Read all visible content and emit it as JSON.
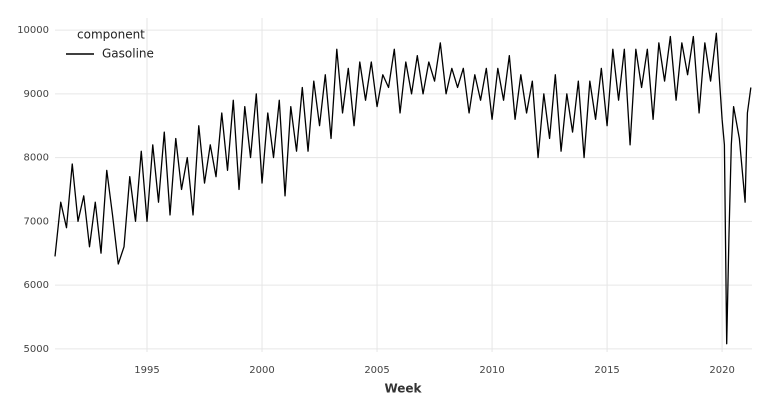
{
  "chart_data": {
    "type": "line",
    "x_label": "Week",
    "legend_title": "component",
    "legend_position": "upper left",
    "grid": true,
    "xlim": [
      1991.0,
      2021.3
    ],
    "xticks": [
      1995,
      2000,
      2005,
      2010,
      2015,
      2020
    ],
    "ylim": [
      4950,
      10190
    ],
    "yticks": [
      5000,
      6000,
      7000,
      8000,
      9000,
      10000
    ],
    "x": [
      1991.0,
      1991.25,
      1991.5,
      1991.75,
      1992.0,
      1992.25,
      1992.5,
      1992.75,
      1993.0,
      1993.25,
      1993.5,
      1993.75,
      1994.0,
      1994.25,
      1994.5,
      1994.75,
      1995.0,
      1995.25,
      1995.5,
      1995.75,
      1996.0,
      1996.25,
      1996.5,
      1996.75,
      1997.0,
      1997.25,
      1997.5,
      1997.75,
      1998.0,
      1998.25,
      1998.5,
      1998.75,
      1999.0,
      1999.25,
      1999.5,
      1999.75,
      2000.0,
      2000.25,
      2000.5,
      2000.75,
      2001.0,
      2001.25,
      2001.5,
      2001.75,
      2002.0,
      2002.25,
      2002.5,
      2002.75,
      2003.0,
      2003.25,
      2003.5,
      2003.75,
      2004.0,
      2004.25,
      2004.5,
      2004.75,
      2005.0,
      2005.25,
      2005.5,
      2005.75,
      2006.0,
      2006.25,
      2006.5,
      2006.75,
      2007.0,
      2007.25,
      2007.5,
      2007.75,
      2008.0,
      2008.25,
      2008.5,
      2008.75,
      2009.0,
      2009.25,
      2009.5,
      2009.75,
      2010.0,
      2010.25,
      2010.5,
      2010.75,
      2011.0,
      2011.25,
      2011.5,
      2011.75,
      2012.0,
      2012.25,
      2012.5,
      2012.75,
      2013.0,
      2013.25,
      2013.5,
      2013.75,
      2014.0,
      2014.25,
      2014.5,
      2014.75,
      2015.0,
      2015.25,
      2015.5,
      2015.75,
      2016.0,
      2016.25,
      2016.5,
      2016.75,
      2017.0,
      2017.25,
      2017.5,
      2017.75,
      2018.0,
      2018.25,
      2018.5,
      2018.75,
      2019.0,
      2019.25,
      2019.5,
      2019.75,
      2020.0,
      2020.1,
      2020.2,
      2020.3,
      2020.4,
      2020.5,
      2020.75,
      2021.0,
      2021.1,
      2021.25
    ],
    "series": [
      {
        "name": "Gasoline",
        "color": "#000000",
        "values": [
          6450,
          7300,
          6900,
          7900,
          7000,
          7400,
          6600,
          7300,
          6500,
          7800,
          7100,
          6330,
          6600,
          7700,
          7000,
          8100,
          7000,
          8200,
          7300,
          8400,
          7100,
          8300,
          7500,
          8000,
          7100,
          8500,
          7600,
          8200,
          7700,
          8700,
          7800,
          8900,
          7500,
          8800,
          8000,
          9000,
          7600,
          8700,
          8000,
          8900,
          7400,
          8800,
          8100,
          9100,
          8100,
          9200,
          8500,
          9300,
          8300,
          9700,
          8700,
          9400,
          8500,
          9500,
          8900,
          9500,
          8800,
          9300,
          9100,
          9700,
          8700,
          9500,
          9000,
          9600,
          9000,
          9500,
          9200,
          9800,
          9000,
          9400,
          9100,
          9400,
          8700,
          9300,
          8900,
          9400,
          8600,
          9400,
          8900,
          9600,
          8600,
          9300,
          8700,
          9200,
          8000,
          9000,
          8300,
          9300,
          8100,
          9000,
          8400,
          9200,
          8000,
          9200,
          8600,
          9400,
          8500,
          9700,
          8900,
          9700,
          8200,
          9700,
          9100,
          9700,
          8600,
          9800,
          9200,
          9900,
          8900,
          9800,
          9300,
          9900,
          8700,
          9800,
          9200,
          9950,
          8600,
          8200,
          5080,
          6800,
          8200,
          8800,
          8300,
          7300,
          8700,
          9100
        ]
      }
    ]
  }
}
